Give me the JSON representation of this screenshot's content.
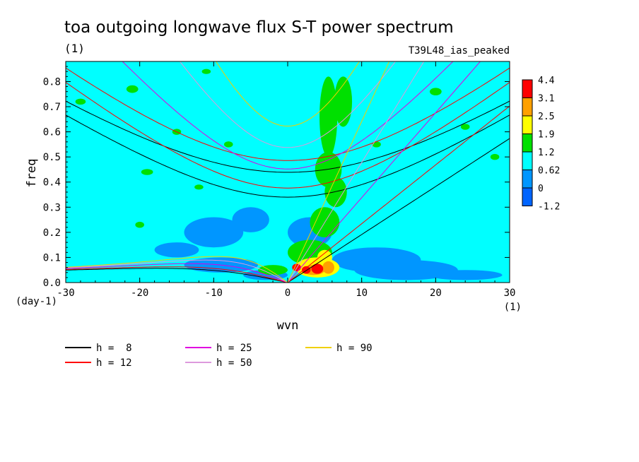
{
  "chart_data": {
    "type": "heatmap",
    "title": "toa outgoing longwave flux S-T power spectrum",
    "title_units": "(1)",
    "subtitle": "T39L48_ias_peaked",
    "xlabel": "wvn",
    "ylabel": "freq",
    "x_units": "(1)",
    "y_units": "(day-1)",
    "xlim": [
      -30,
      30
    ],
    "ylim": [
      0,
      0.88
    ],
    "x_ticks": [
      "-30",
      "-20",
      "-10",
      "0",
      "10",
      "20",
      "30"
    ],
    "y_ticks": [
      "0.0",
      "0.1",
      "0.2",
      "0.3",
      "0.4",
      "0.5",
      "0.6",
      "0.7",
      "0.8"
    ],
    "colorbar": {
      "levels": [
        "4.4",
        "3.1",
        "2.5",
        "1.9",
        "1.2",
        "0.62",
        "0",
        "-1.2"
      ],
      "colors": [
        "#ff0000",
        "#ffa000",
        "#ffff00",
        "#00e000",
        "#00ffff",
        "#0096ff",
        "#0064ff"
      ]
    },
    "background_color": "#00ffff",
    "dispersion_curves": [
      {
        "name": "h =  8",
        "h": 8,
        "color": "#000000"
      },
      {
        "name": "h = 12",
        "h": 12,
        "color": "#ff0000"
      },
      {
        "name": "h = 25",
        "h": 25,
        "color": "#e000e0"
      },
      {
        "name": "h = 50",
        "h": 50,
        "color": "#dd99dd"
      },
      {
        "name": "h = 90",
        "h": 90,
        "color": "#f0d000"
      }
    ],
    "blobs": [
      {
        "x": -10,
        "y": 0.2,
        "rx": 4,
        "ry": 0.06,
        "c": "#0096ff"
      },
      {
        "x": -5,
        "y": 0.25,
        "rx": 2.5,
        "ry": 0.05,
        "c": "#0096ff"
      },
      {
        "x": -15,
        "y": 0.13,
        "rx": 3,
        "ry": 0.03,
        "c": "#0096ff"
      },
      {
        "x": -9,
        "y": 0.07,
        "rx": 5,
        "ry": 0.03,
        "c": "#0096ff"
      },
      {
        "x": -3,
        "y": 0.03,
        "rx": 3,
        "ry": 0.02,
        "c": "#0096ff"
      },
      {
        "x": 3,
        "y": 0.2,
        "rx": 3,
        "ry": 0.06,
        "c": "#0096ff"
      },
      {
        "x": 12,
        "y": 0.09,
        "rx": 6,
        "ry": 0.05,
        "c": "#0096ff"
      },
      {
        "x": 16,
        "y": 0.05,
        "rx": 7,
        "ry": 0.04,
        "c": "#0096ff"
      },
      {
        "x": 24,
        "y": 0.03,
        "rx": 5,
        "ry": 0.02,
        "c": "#0096ff"
      },
      {
        "x": 5.5,
        "y": 0.66,
        "rx": 1.2,
        "ry": 0.16,
        "c": "#00e000"
      },
      {
        "x": 7.5,
        "y": 0.72,
        "rx": 1.2,
        "ry": 0.1,
        "c": "#00e000"
      },
      {
        "x": 5.5,
        "y": 0.45,
        "rx": 1.8,
        "ry": 0.07,
        "c": "#00e000"
      },
      {
        "x": 6.5,
        "y": 0.36,
        "rx": 1.5,
        "ry": 0.06,
        "c": "#00e000"
      },
      {
        "x": 5,
        "y": 0.24,
        "rx": 2,
        "ry": 0.06,
        "c": "#00e000"
      },
      {
        "x": 3,
        "y": 0.12,
        "rx": 3,
        "ry": 0.05,
        "c": "#00e000"
      },
      {
        "x": -2,
        "y": 0.05,
        "rx": 2,
        "ry": 0.02,
        "c": "#00e000"
      },
      {
        "x": 4,
        "y": 0.06,
        "rx": 3,
        "ry": 0.04,
        "c": "#ffff00"
      },
      {
        "x": 5,
        "y": 0.1,
        "rx": 1,
        "ry": 0.03,
        "c": "#ffff00"
      },
      {
        "x": 3.5,
        "y": 0.05,
        "rx": 1.5,
        "ry": 0.02,
        "c": "#ffa000"
      },
      {
        "x": 5.5,
        "y": 0.06,
        "rx": 0.8,
        "ry": 0.025,
        "c": "#ffa000"
      },
      {
        "x": 2.5,
        "y": 0.05,
        "rx": 0.6,
        "ry": 0.015,
        "c": "#ff0000"
      },
      {
        "x": 4,
        "y": 0.055,
        "rx": 0.8,
        "ry": 0.02,
        "c": "#ff0000"
      },
      {
        "x": 1.2,
        "y": 0.06,
        "rx": 0.6,
        "ry": 0.015,
        "c": "#ff0000"
      },
      {
        "x": -21,
        "y": 0.77,
        "rx": 0.8,
        "ry": 0.015,
        "c": "#00e000"
      },
      {
        "x": -28,
        "y": 0.72,
        "rx": 0.7,
        "ry": 0.012,
        "c": "#00e000"
      },
      {
        "x": -19,
        "y": 0.44,
        "rx": 0.8,
        "ry": 0.012,
        "c": "#00e000"
      },
      {
        "x": -8,
        "y": 0.55,
        "rx": 0.6,
        "ry": 0.012,
        "c": "#00e000"
      },
      {
        "x": -12,
        "y": 0.38,
        "rx": 0.6,
        "ry": 0.01,
        "c": "#00e000"
      },
      {
        "x": -15,
        "y": 0.6,
        "rx": 0.6,
        "ry": 0.012,
        "c": "#00e000"
      },
      {
        "x": -20,
        "y": 0.23,
        "rx": 0.6,
        "ry": 0.012,
        "c": "#00e000"
      },
      {
        "x": 20,
        "y": 0.76,
        "rx": 0.8,
        "ry": 0.015,
        "c": "#00e000"
      },
      {
        "x": 28,
        "y": 0.5,
        "rx": 0.6,
        "ry": 0.012,
        "c": "#00e000"
      },
      {
        "x": 24,
        "y": 0.62,
        "rx": 0.6,
        "ry": 0.012,
        "c": "#00e000"
      },
      {
        "x": -11,
        "y": 0.84,
        "rx": 0.6,
        "ry": 0.01,
        "c": "#00e000"
      },
      {
        "x": 12,
        "y": 0.55,
        "rx": 0.6,
        "ry": 0.012,
        "c": "#00e000"
      }
    ]
  }
}
